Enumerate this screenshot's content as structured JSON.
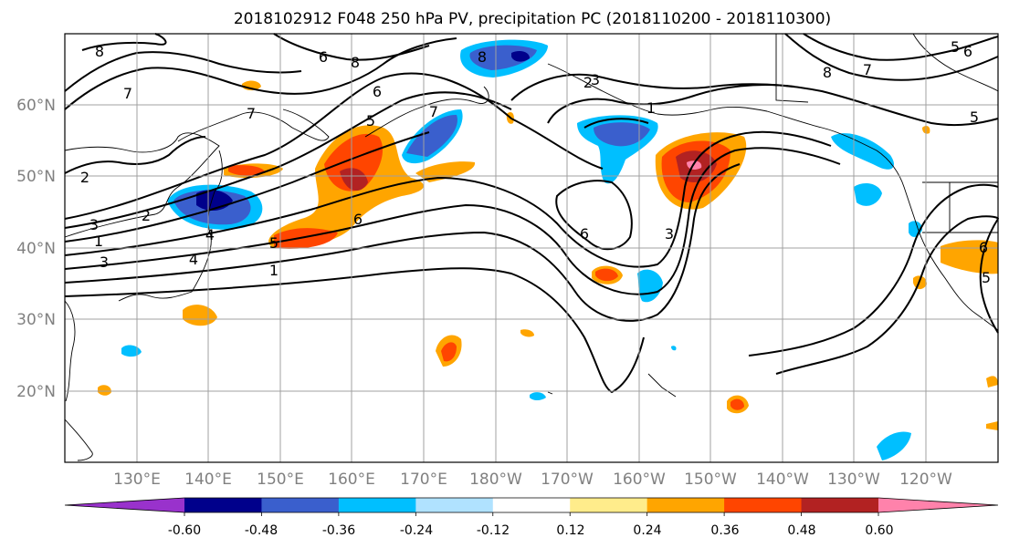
{
  "title": "2018102912 F048 250 hPa PV, precipitation PC (2018110200 - 2018110300)",
  "lat_labels": [
    "60°N",
    "50°N",
    "40°N",
    "30°N",
    "20°N"
  ],
  "lon_labels": [
    "130°E",
    "140°E",
    "150°E",
    "160°E",
    "170°E",
    "180°W",
    "170°W",
    "160°W",
    "150°W",
    "140°W",
    "130°W",
    "120°W"
  ],
  "colorbar": {
    "colors": [
      "#9932cc",
      "#00008b",
      "#3a5fcd",
      "#00bfff",
      "#b0e2ff",
      "#ffffff",
      "#ffec8b",
      "#ffa500",
      "#ff4500",
      "#b22222",
      "#ff82ab"
    ],
    "tick_labels": [
      "-0.60",
      "-0.48",
      "-0.36",
      "-0.24",
      "-0.12",
      "0.12",
      "0.24",
      "0.36",
      "0.48",
      "0.60"
    ],
    "extend": "both"
  },
  "contour_labels": [
    "8",
    "7",
    "6",
    "8",
    "7",
    "6",
    "5",
    "4",
    "3",
    "2",
    "1",
    "1",
    "2",
    "3",
    "4",
    "5",
    "6",
    "7",
    "8",
    "1",
    "2",
    "3",
    "6",
    "3",
    "8",
    "7",
    "5",
    "6",
    "5",
    "6",
    "5"
  ],
  "map": {
    "projection": "PlateCarree",
    "extent_lon": [
      120,
      250
    ],
    "extent_lat": [
      10,
      70
    ],
    "gridlines": true,
    "coastlines": true
  }
}
